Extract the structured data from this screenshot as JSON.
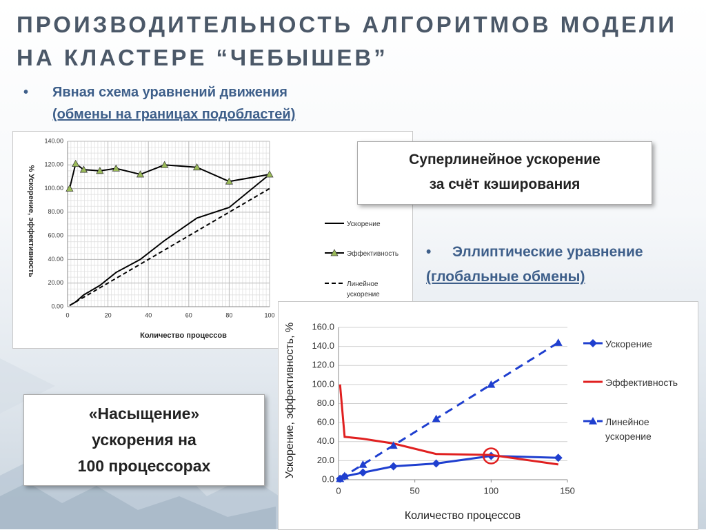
{
  "slide": {
    "title": [
      "ПРОИЗВОДИТЕЛЬНОСТЬ АЛГОРИТМОВ МОДЕЛИ",
      "НА КЛАСТЕРЕ “ЧЕБЫШЕВ”"
    ],
    "bullet1": [
      "Явная схема уравнений движения",
      "(обмены на границах подобластей)"
    ],
    "callout1": [
      "Суперлинейное ускорение",
      "за счёт кэширования"
    ],
    "bullet2": [
      "Эллиптические уравнение",
      "(глобальные обмены)"
    ],
    "callout2": [
      "«Насыщение»",
      "ускорения на",
      "100 процессорах"
    ]
  },
  "chart_data": [
    {
      "type": "line",
      "xlabel": "Количество процессов",
      "ylabel": "% Ускорение, эффективность",
      "x": [
        1,
        4,
        8,
        16,
        24,
        36,
        48,
        64,
        80,
        100
      ],
      "series": [
        {
          "name": "Ускорение",
          "color": "#000000",
          "line_style": "solid",
          "marker": "none",
          "values": [
            1,
            4,
            10,
            18,
            29,
            40,
            56,
            75,
            84,
            112
          ]
        },
        {
          "name": "Эффективность",
          "color": "#000000",
          "marker_color": "#9bbb59",
          "line_style": "solid",
          "marker": "triangle",
          "values": [
            100,
            121,
            116,
            115,
            117,
            112,
            120,
            118,
            106,
            112
          ]
        },
        {
          "name": "Линейное ускорение",
          "color": "#000000",
          "line_style": "dashed",
          "marker": "none",
          "values": [
            1,
            4,
            8,
            16,
            24,
            36,
            48,
            64,
            80,
            100
          ]
        }
      ],
      "xlim": [
        0,
        100
      ],
      "xticks": [
        0,
        20,
        40,
        60,
        80,
        100
      ],
      "ylim": [
        0,
        140
      ],
      "yticks": [
        {
          "value": 0,
          "label": "0.00"
        },
        {
          "value": 20,
          "label": "20.00"
        },
        {
          "value": 40,
          "label": "40.00"
        },
        {
          "value": 60,
          "label": "60.00"
        },
        {
          "value": 80,
          "label": "80.00"
        },
        {
          "value": 100,
          "label": "100.00"
        },
        {
          "value": 120,
          "label": "120.00"
        },
        {
          "value": 140,
          "label": "140.00"
        }
      ],
      "grid": true,
      "legend": "right"
    },
    {
      "type": "line",
      "xlabel": "Количество процессов",
      "ylabel": "Ускорение, эффективность, %",
      "x": [
        1,
        4,
        16,
        36,
        64,
        100,
        144
      ],
      "series": [
        {
          "name": "Ускорение",
          "color": "#1f3fcf",
          "line_style": "solid",
          "marker": "diamond",
          "values": [
            1,
            3.5,
            7.5,
            14,
            17,
            25,
            23
          ]
        },
        {
          "name": "Эффективность",
          "color": "#e02020",
          "line_style": "solid",
          "marker": "none",
          "values": [
            100,
            45,
            43,
            38,
            27,
            26,
            16
          ]
        },
        {
          "name": "Линейное ускорение",
          "color": "#1f3fcf",
          "line_style": "dashed",
          "marker": "triangle",
          "values": [
            1,
            4,
            16,
            36,
            64,
            100,
            144
          ]
        }
      ],
      "xlim": [
        0,
        150
      ],
      "xticks": [
        0,
        50,
        100,
        150
      ],
      "ylim": [
        0,
        160
      ],
      "yticks": [
        {
          "value": 0,
          "label": "0.0"
        },
        {
          "value": 20,
          "label": "20.0"
        },
        {
          "value": 40,
          "label": "40.0"
        },
        {
          "value": 60,
          "label": "60.0"
        },
        {
          "value": 80,
          "label": "80.0"
        },
        {
          "value": 100,
          "label": "100.0"
        },
        {
          "value": 120,
          "label": "120.0"
        },
        {
          "value": 140,
          "label": "140.0"
        },
        {
          "value": 160,
          "label": "160.0"
        }
      ],
      "grid": true,
      "legend": "right"
    }
  ]
}
